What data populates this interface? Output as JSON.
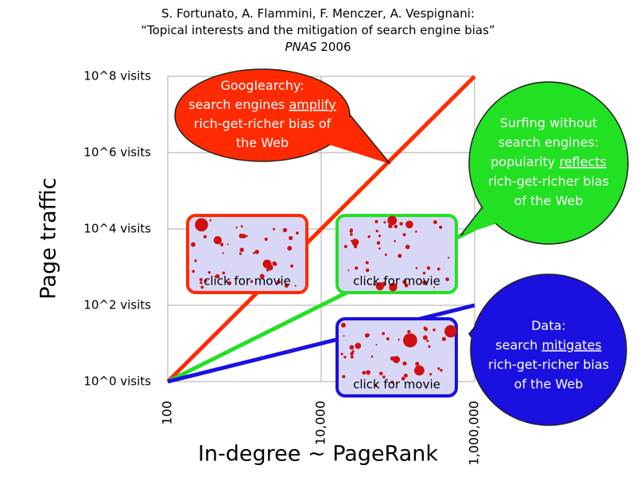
{
  "chart_data": {
    "type": "line",
    "title_lines": [
      [
        "S. Fortunato, A. Flammini, F. Menczer, A. Vespignani:"
      ],
      [
        "“Topical interests and the mitigation of search engine bias”"
      ],
      [
        {
          "text": "PNAS",
          "italic": true
        },
        " 2006"
      ]
    ],
    "xlabel": "In-degree ~ PageRank",
    "ylabel": "Page traffic",
    "xscale": "log",
    "yscale": "log",
    "xlim": [
      100,
      1000000
    ],
    "ylim": [
      1,
      100000000
    ],
    "xticks": [
      100,
      {
        "value": 10000,
        "label": "10,000"
      },
      {
        "value": 1000000,
        "label": "1,000,000"
      }
    ],
    "yticks": [
      {
        "value": 1,
        "label": "10^0 visits"
      },
      {
        "value": 100,
        "label": "10^2 visits"
      },
      {
        "value": 10000,
        "label": "10^4 visits"
      },
      {
        "value": 1000000,
        "label": "10^6 visits"
      },
      {
        "value": 100000000,
        "label": "10^8 visits"
      }
    ],
    "grid": true,
    "x": [
      100,
      1000000
    ],
    "series": [
      {
        "color": "#ff2a00",
        "values": [
          1,
          100000000
        ]
      },
      {
        "color": "#22e022",
        "values": [
          1,
          10000
        ]
      },
      {
        "color": "#1a10e0",
        "values": [
          1,
          100
        ]
      }
    ],
    "annotations": [
      {
        "color": "#ff2a00",
        "lines": [
          "Googlearchy:",
          [
            "search engines ",
            {
              "text": "amplify",
              "underline": true
            }
          ],
          "rich-get-richer bias of",
          "the Web"
        ]
      },
      {
        "color": "#22e022",
        "lines": [
          "Surfing without",
          "search engines:",
          [
            "popularity ",
            {
              "text": "reflects",
              "underline": true
            }
          ],
          "rich-get-richer bias",
          "of the Web"
        ]
      },
      {
        "color": "#1a10e0",
        "lines": [
          "Data:",
          [
            "search ",
            {
              "text": "mitigates",
              "underline": true
            }
          ],
          "rich-get-richer bias",
          "of the Web"
        ]
      }
    ],
    "movie_links": [
      {
        "label": "click for movie",
        "color": "#ff2a00"
      },
      {
        "label": "click for movie",
        "color": "#22e022"
      },
      {
        "label": "click for movie",
        "color": "#1a10e0"
      }
    ]
  }
}
